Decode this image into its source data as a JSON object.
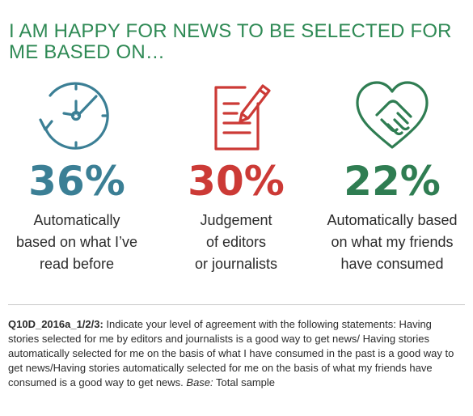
{
  "headline": {
    "line1": "I AM HAPPY FOR NEWS TO BE SELECTED FOR",
    "line2": "ME BASED ON…",
    "color": "#2f8a55"
  },
  "items": [
    {
      "icon": "clock-arrow-icon",
      "value": "36%",
      "color": "#3b7f95",
      "label_lines": [
        "Automatically",
        "based on what I’ve",
        "read before"
      ]
    },
    {
      "icon": "notepad-pencil-icon",
      "value": "30%",
      "color": "#cc3a36",
      "label_lines": [
        "Judgement",
        "of editors",
        "or journalists"
      ]
    },
    {
      "icon": "heart-handshake-icon",
      "value": "22%",
      "color": "#2f7d52",
      "label_lines": [
        "Automatically based",
        "on what my friends",
        "have consumed"
      ]
    }
  ],
  "footnote": {
    "qid": "Q10D_2016a_1/2/3:",
    "text": " Indicate your level of agreement with the following statements: Having stories selected for me by editors and journalists is a good way to get news/ Having stories automatically selected for me on the basis of what I have consumed in the past is a good way to get news/Having stories automatically selected for me on the basis of what my friends have consumed is a good way to get news. ",
    "base_label": "Base:",
    "base_value": " Total sample"
  }
}
